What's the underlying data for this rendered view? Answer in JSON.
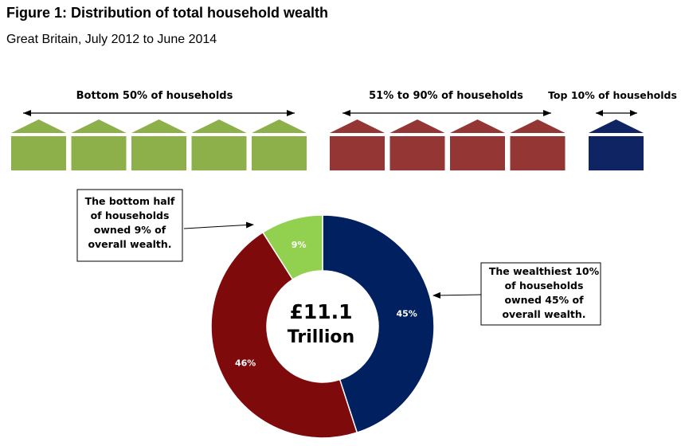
{
  "title": "Figure 1: Distribution of total household wealth",
  "subtitle": "Great Britain, July 2012 to June 2014",
  "groups": [
    {
      "label": "Bottom 50% of households",
      "houses": 5,
      "color": "#8db04a"
    },
    {
      "label": "51% to 90% of households",
      "houses": 4,
      "color": "#943634"
    },
    {
      "label": "Top 10% of households",
      "houses": 1,
      "color": "#0f2463"
    }
  ],
  "chart_data": {
    "type": "pie",
    "categories": [
      "Top 10%",
      "51% to 90%",
      "Bottom 50%"
    ],
    "values": [
      45,
      46,
      9
    ],
    "value_labels": [
      "45%",
      "46%",
      "9%"
    ],
    "colors": [
      "#002060",
      "#7f0a0b",
      "#92d050"
    ],
    "center_text": [
      "£11.1",
      "Trillion"
    ]
  },
  "annotations": {
    "left": [
      "The bottom half",
      "of households",
      "owned  9% of",
      "overall wealth."
    ],
    "right": [
      "The wealthiest 10%",
      "of households",
      "owned 45% of",
      "overall wealth."
    ]
  }
}
